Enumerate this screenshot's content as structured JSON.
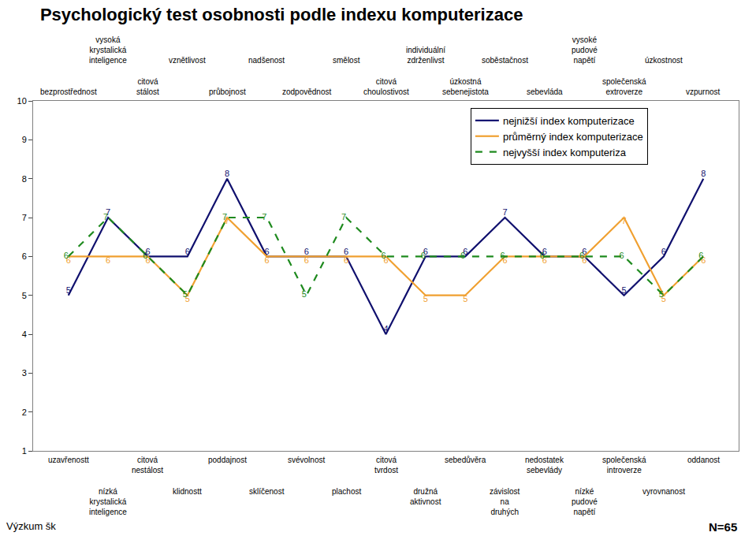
{
  "chart_data": {
    "type": "line",
    "title": "Psychologický test osobnosti podle indexu komputerizace",
    "categories": [
      "uzavřenostt",
      "nízká krystalická inteligence",
      "citová nestálost",
      "klidnostt",
      "poddajnost",
      "sklíčenost",
      "svévolnost",
      "plachost",
      "citová tvrdost",
      "družná aktivnost",
      "sebedůvěra",
      "závislost na druhých",
      "nedostatek sebevlády",
      "nízké pudové napětí",
      "společenská introverze",
      "vyrovnanost",
      "oddanost"
    ],
    "categories_top": [
      "bezprostřednost",
      "vysoká krystalická inteligence",
      "citová stálost",
      "vznětlivost",
      "průbojnost",
      "nadšenost",
      "zodpovědnost",
      "smělost",
      "citová choulostivost",
      "individuální zdrženlivst",
      "úzkostná sebenejistota",
      "soběstačnost",
      "sebevláda",
      "vysoké pudové napětí",
      "společenská extroverze",
      "úzkostnost",
      "vzpurnost"
    ],
    "ylim": [
      1,
      10
    ],
    "yticks": [
      1,
      2,
      3,
      4,
      5,
      6,
      7,
      8,
      9,
      10
    ],
    "grid": false,
    "legend": "upper right",
    "data_labels": true,
    "series": [
      {
        "name": "nejnižší index komputerizace",
        "color": "#10106e",
        "line_style": "solid",
        "values": [
          5,
          7,
          6,
          6,
          8,
          6,
          6,
          6,
          4,
          6,
          6,
          7,
          6,
          6,
          5,
          6,
          8
        ]
      },
      {
        "name": "průměrný index komputerizace",
        "color": "#f0a030",
        "line_style": "solid",
        "values": [
          6,
          6,
          6,
          5,
          7,
          6,
          6,
          6,
          6,
          5,
          5,
          6,
          6,
          6,
          7,
          5,
          6
        ]
      },
      {
        "name": "nejvyšší index komputeriza",
        "color": "#1e8a1e",
        "line_style": "dashed",
        "values": [
          6,
          7,
          6,
          5,
          7,
          7,
          5,
          7,
          6,
          6,
          6,
          6,
          6,
          6,
          6,
          5,
          6
        ]
      }
    ],
    "annotations": [
      "Výzkum šk",
      "N=65"
    ]
  }
}
